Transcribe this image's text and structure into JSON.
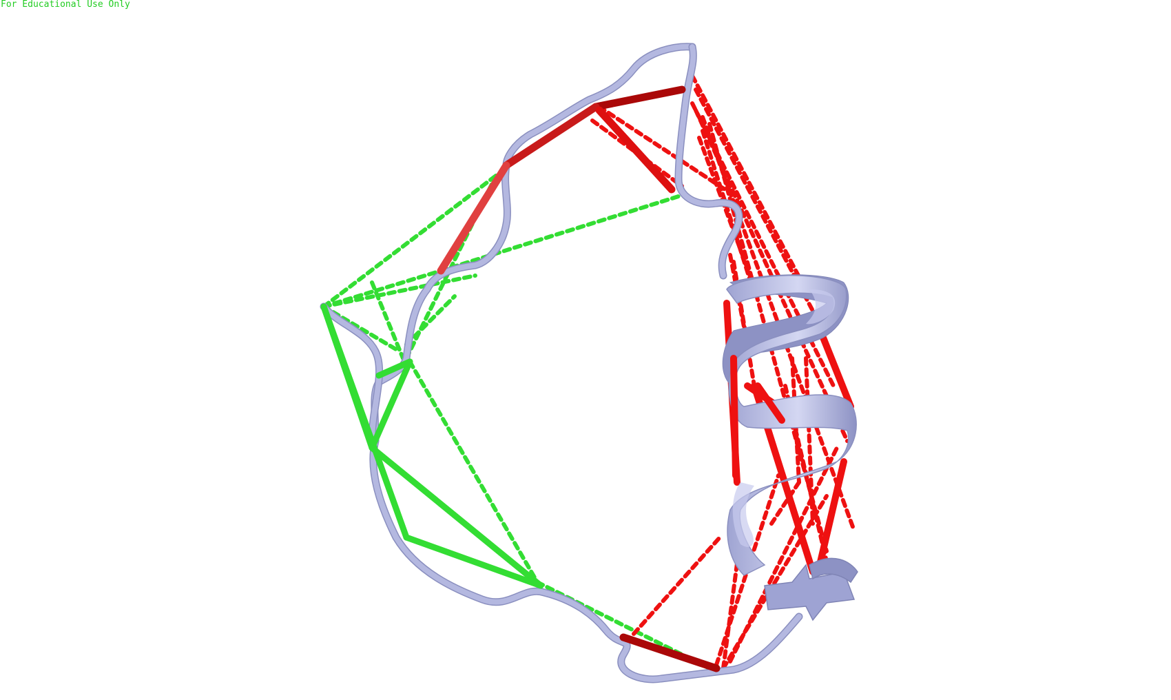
{
  "watermark": "For Educational Use Only",
  "colors": {
    "background": "#ffffff",
    "backbone": "#b4b8e0",
    "backbone_shade": "#8a8fbf",
    "constraint_red": "#ee1111",
    "constraint_darkred": "#aa0808",
    "constraint_green": "#33dd33",
    "watermark": "#22cc22"
  }
}
